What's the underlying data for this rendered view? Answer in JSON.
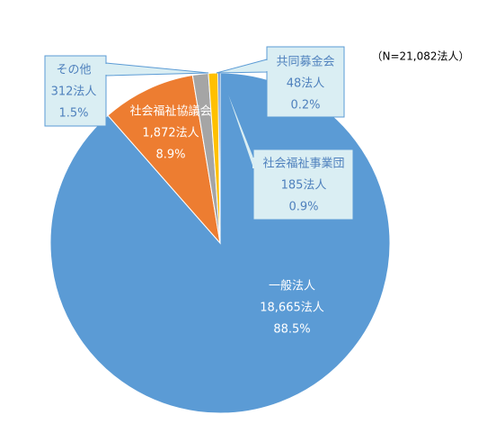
{
  "chart_data": {
    "type": "pie",
    "note": "（N=21,082法人）",
    "categories": [
      "一般法人",
      "社会福祉協議会",
      "その他",
      "社会福祉事業団",
      "共同募金会"
    ],
    "values": [
      18665,
      1872,
      312,
      185,
      48
    ],
    "value_labels": [
      "18,665法人",
      "1,872法人",
      "312法人",
      "185法人",
      "48法人"
    ],
    "shares": [
      88.5,
      8.9,
      1.5,
      0.9,
      0.2
    ],
    "share_labels": [
      "88.5%",
      "8.9%",
      "1.5%",
      "0.9%",
      "0.2%"
    ],
    "colors": [
      "#5b9bd5",
      "#ed7d31",
      "#a5a5a5",
      "#ffc000",
      "#4472c4"
    ]
  }
}
